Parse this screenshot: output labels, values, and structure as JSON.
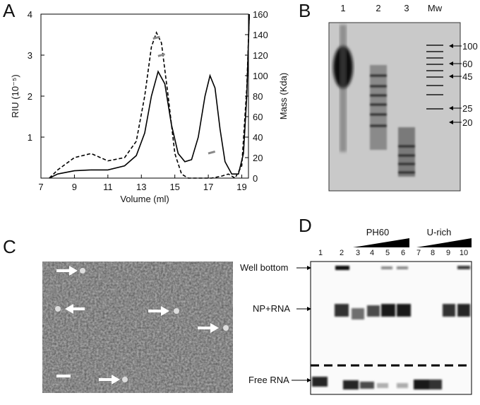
{
  "chart_data": {
    "type": "line",
    "panel": "A",
    "xlabel": "Volume (ml)",
    "ylabel": "RIU (10⁻⁵)",
    "y2label": "Mass (Kda)",
    "xlim": [
      7,
      19.4
    ],
    "xticks": [
      7,
      9,
      11,
      13,
      15,
      17,
      19
    ],
    "ylim": [
      0,
      4
    ],
    "yticks": [
      1,
      2,
      3,
      4
    ],
    "y2lim": [
      0,
      160
    ],
    "y2ticks": [
      0,
      20,
      40,
      60,
      80,
      100,
      120,
      140,
      160
    ],
    "series": [
      {
        "color": "#000000",
        "style": "solid",
        "x": [
          7.5,
          8,
          9,
          10,
          11,
          12,
          12.7,
          13.2,
          13.6,
          14,
          14.4,
          14.8,
          15.2,
          15.6,
          16,
          16.4,
          16.8,
          17.1,
          17.4,
          17.7,
          18,
          18.4,
          18.8,
          19.1,
          19.3,
          19.45
        ],
        "values": [
          0,
          0.1,
          0.18,
          0.2,
          0.2,
          0.3,
          0.55,
          1.1,
          2.0,
          2.6,
          2.3,
          1.3,
          0.6,
          0.4,
          0.45,
          1.0,
          2.0,
          2.5,
          2.2,
          1.2,
          0.4,
          0.1,
          0.1,
          0.6,
          2.0,
          4
        ]
      },
      {
        "color": "#000000",
        "style": "dashed",
        "x": [
          7.5,
          8,
          9,
          10,
          11,
          12,
          12.7,
          13.2,
          13.6,
          13.9,
          14.2,
          14.6,
          15,
          15.4,
          15.8,
          16.5,
          17.2,
          17.8,
          18.2,
          18.6,
          19,
          19.3,
          19.45
        ],
        "values": [
          0,
          0.2,
          0.5,
          0.6,
          0.42,
          0.5,
          0.9,
          2.0,
          3.2,
          3.55,
          3.3,
          2.0,
          0.6,
          0.1,
          0,
          0,
          0,
          0.05,
          0.1,
          0,
          0.3,
          2.2,
          4
        ]
      },
      {
        "color": "#888888",
        "style": "marker",
        "axis": "y2",
        "x": [
          13.9,
          14.2,
          17.2
        ],
        "values": [
          137,
          120,
          25
        ]
      }
    ]
  },
  "panel_b": {
    "label": "B",
    "lanes": [
      "1",
      "2",
      "3",
      "Mw"
    ],
    "markers": [
      "100",
      "60",
      "45",
      "25",
      "20"
    ]
  },
  "panel_c": {
    "label": "C"
  },
  "panel_d": {
    "label": "D",
    "lanes": [
      "1",
      "2",
      "3",
      "4",
      "5",
      "6",
      "7",
      "8",
      "9",
      "10"
    ],
    "groups": [
      "PH60",
      "U-rich"
    ],
    "rows": [
      "Well bottom",
      "NP+RNA",
      "Free RNA"
    ]
  }
}
